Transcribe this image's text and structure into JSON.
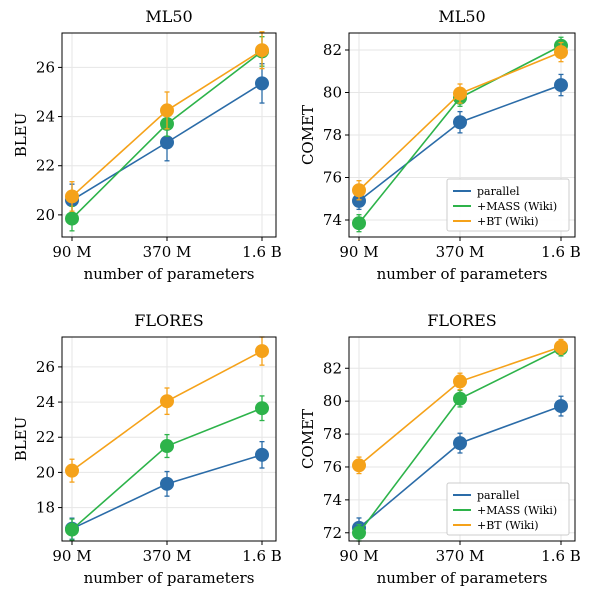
{
  "colors": {
    "parallel": "#2b6ca8",
    "mass": "#2db34a",
    "bt": "#f5a21a"
  },
  "chart_data": [
    {
      "type": "line",
      "title": "ML50",
      "xlabel": "number of parameters",
      "ylabel": "BLEU",
      "categories": [
        "90 M",
        "370 M",
        "1.6 B"
      ],
      "ylim": [
        19.1,
        27.4
      ],
      "yticks": [
        20,
        22,
        24,
        26
      ],
      "ytick_labels": [
        "20",
        "22",
        "24",
        "26"
      ],
      "grid": true,
      "legend": false,
      "series": [
        {
          "name": "parallel",
          "color": "#2b6ca8",
          "values": [
            20.6,
            22.95,
            25.35
          ],
          "err": [
            0.65,
            0.75,
            0.8
          ]
        },
        {
          "name": "+MASS (Wiki)",
          "color": "#2db34a",
          "values": [
            19.85,
            23.7,
            26.65
          ],
          "err": [
            0.5,
            0.5,
            0.6
          ]
        },
        {
          "name": "+BT (Wiki)",
          "color": "#f5a21a",
          "values": [
            20.75,
            24.25,
            26.7
          ],
          "err": [
            0.6,
            0.75,
            0.75
          ]
        }
      ]
    },
    {
      "type": "line",
      "title": "ML50",
      "xlabel": "number of parameters",
      "ylabel": "COMET",
      "categories": [
        "90 M",
        "370 M",
        "1.6 B"
      ],
      "ylim": [
        73.2,
        82.8
      ],
      "yticks": [
        74,
        76,
        78,
        80,
        82
      ],
      "ytick_labels": [
        "74",
        "76",
        "78",
        "80",
        "82"
      ],
      "grid": true,
      "legend": "bottom-right",
      "series": [
        {
          "name": "parallel",
          "color": "#2b6ca8",
          "values": [
            74.9,
            78.6,
            80.35
          ],
          "err": [
            0.4,
            0.5,
            0.5
          ]
        },
        {
          "name": "+MASS (Wiki)",
          "color": "#2db34a",
          "values": [
            73.85,
            79.75,
            82.2
          ],
          "err": [
            0.4,
            0.4,
            0.4
          ]
        },
        {
          "name": "+BT (Wiki)",
          "color": "#f5a21a",
          "values": [
            75.4,
            79.95,
            81.9
          ],
          "err": [
            0.45,
            0.45,
            0.45
          ]
        }
      ]
    },
    {
      "type": "line",
      "title": "FLORES",
      "xlabel": "number of parameters",
      "ylabel": "BLEU",
      "categories": [
        "90 M",
        "370 M",
        "1.6 B"
      ],
      "ylim": [
        16.1,
        27.7
      ],
      "yticks": [
        18,
        20,
        22,
        24,
        26
      ],
      "ytick_labels": [
        "18",
        "20",
        "22",
        "24",
        "26"
      ],
      "grid": true,
      "legend": false,
      "series": [
        {
          "name": "parallel",
          "color": "#2b6ca8",
          "values": [
            16.8,
            19.35,
            21.0
          ],
          "err": [
            0.6,
            0.7,
            0.75
          ]
        },
        {
          "name": "+MASS (Wiki)",
          "color": "#2db34a",
          "values": [
            16.75,
            21.5,
            23.65
          ],
          "err": [
            0.6,
            0.65,
            0.7
          ]
        },
        {
          "name": "+BT (Wiki)",
          "color": "#f5a21a",
          "values": [
            20.1,
            24.05,
            26.9
          ],
          "err": [
            0.65,
            0.75,
            0.8
          ]
        }
      ]
    },
    {
      "type": "line",
      "title": "FLORES",
      "xlabel": "number of parameters",
      "ylabel": "COMET",
      "categories": [
        "90 M",
        "370 M",
        "1.6 B"
      ],
      "ylim": [
        71.5,
        83.9
      ],
      "yticks": [
        72,
        74,
        76,
        78,
        80,
        82
      ],
      "ytick_labels": [
        "72",
        "74",
        "76",
        "78",
        "80",
        "82"
      ],
      "grid": true,
      "legend": "bottom-right",
      "series": [
        {
          "name": "parallel",
          "color": "#2b6ca8",
          "values": [
            72.3,
            77.45,
            79.7
          ],
          "err": [
            0.6,
            0.6,
            0.6
          ]
        },
        {
          "name": "+MASS (Wiki)",
          "color": "#2db34a",
          "values": [
            72.0,
            80.15,
            83.2
          ],
          "err": [
            0.5,
            0.5,
            0.45
          ]
        },
        {
          "name": "+BT (Wiki)",
          "color": "#f5a21a",
          "values": [
            76.1,
            81.2,
            83.3
          ],
          "err": [
            0.5,
            0.5,
            0.45
          ]
        }
      ]
    }
  ]
}
